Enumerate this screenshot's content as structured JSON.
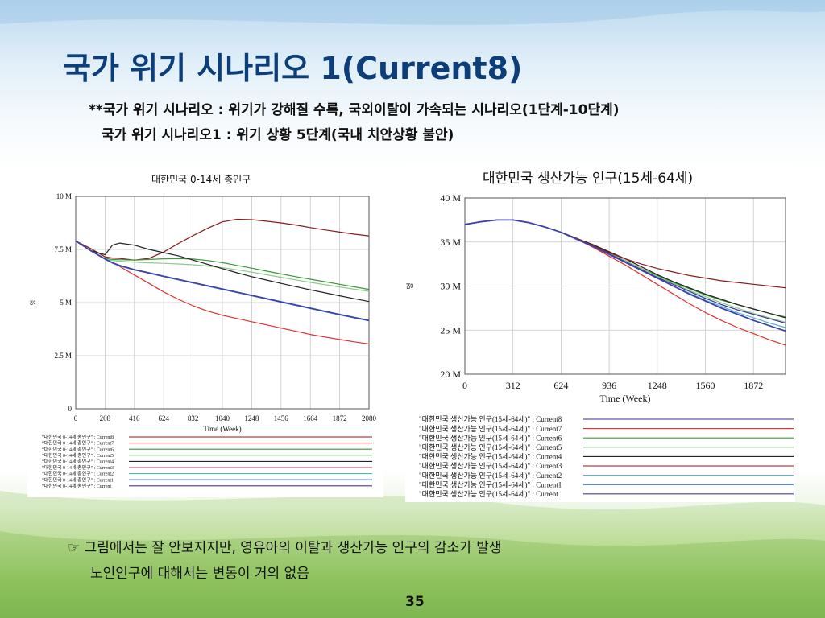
{
  "slide": {
    "title": "국가 위기 시나리오 1(Current8)",
    "subtitle_line1": "**국가 위기 시나리오  : 위기가 강해질 수록, 국외이탈이 가속되는 시나리오(1단계-10단계)",
    "subtitle_line2": "국가 위기 시나리오1 : 위기 상황 5단계(국내 치안상황 불안)",
    "note_line1": "☞ 그림에서는 잘 안보지지만, 영유아의 이탈과 생산가능 인구의 감소가 발생",
    "note_line2": "노인인구에 대해서는 변동이 거의 없음",
    "page_number": "35"
  },
  "chart_data": [
    {
      "type": "line",
      "title": "대한민국 0-14세 총인구",
      "xlabel": "Time (Week)",
      "ylabel": "명",
      "xlim": [
        0,
        2080
      ],
      "ylim": [
        0,
        10000000
      ],
      "x_ticks": [
        "0",
        "208",
        "416",
        "624",
        "832",
        "1040",
        "1248",
        "1456",
        "1664",
        "1872",
        "2080"
      ],
      "y_ticks": [
        {
          "value": 0,
          "label": "0"
        },
        {
          "value": 2500000,
          "label": "2.5 M"
        },
        {
          "value": 5000000,
          "label": "5 M"
        },
        {
          "value": 7500000,
          "label": "7.5 M"
        },
        {
          "value": 10000000,
          "label": "10 M"
        }
      ],
      "x": [
        0,
        104,
        208,
        260,
        312,
        416,
        520,
        624,
        728,
        832,
        936,
        1040,
        1144,
        1248,
        1352,
        1456,
        1560,
        1664,
        1768,
        1872,
        1976,
        2080
      ],
      "series": [
        {
          "name": "\"대한민국 0-14세 총인구\" : Current8",
          "color": "#8b1a1a",
          "width": 1.2,
          "values": [
            7900000,
            7550000,
            7150000,
            7100000,
            7080000,
            7000000,
            7080000,
            7380000,
            7780000,
            8150000,
            8500000,
            8800000,
            8920000,
            8900000,
            8830000,
            8750000,
            8650000,
            8530000,
            8420000,
            8320000,
            8220000,
            8140000
          ]
        },
        {
          "name": "\"대한민국 0-14세 총인구\" : Current7",
          "color": "#e03030",
          "width": 1.2,
          "values": [
            7900000,
            7450000,
            7050000,
            6900000,
            6700000,
            6300000,
            5900000,
            5500000,
            5150000,
            4850000,
            4600000,
            4400000,
            4250000,
            4100000,
            3950000,
            3800000,
            3650000,
            3500000,
            3380000,
            3260000,
            3150000,
            3050000
          ]
        },
        {
          "name": "\"대한민국 0-14세 총인구\" : Current6",
          "color": "#3a9a3a",
          "width": 1.2,
          "values": [
            7900000,
            7450000,
            7080000,
            7030000,
            7020000,
            7000000,
            7030000,
            7060000,
            7070000,
            7050000,
            6980000,
            6880000,
            6750000,
            6620000,
            6480000,
            6350000,
            6220000,
            6100000,
            5980000,
            5860000,
            5740000,
            5620000
          ]
        },
        {
          "name": "\"대한민국 0-14세 총인구\" : Current5",
          "color": "#8cc88c",
          "width": 1.2,
          "values": [
            7900000,
            7450000,
            7050000,
            6980000,
            6950000,
            6900000,
            6870000,
            6850000,
            6820000,
            6780000,
            6720000,
            6640000,
            6540000,
            6430000,
            6310000,
            6190000,
            6070000,
            5950000,
            5840000,
            5730000,
            5630000,
            5530000
          ]
        },
        {
          "name": "\"대한민국 0-14세 총인구\" : Current4",
          "color": "#222222",
          "width": 1.2,
          "values": [
            7900000,
            7450000,
            7250000,
            7700000,
            7800000,
            7700000,
            7500000,
            7350000,
            7200000,
            7000000,
            6800000,
            6600000,
            6400000,
            6220000,
            6060000,
            5900000,
            5750000,
            5600000,
            5460000,
            5320000,
            5180000,
            5050000
          ]
        },
        {
          "name": "\"대한민국 0-14세 총인구\" : Current3",
          "color": "#b03a5a",
          "width": 1.2,
          "values": [
            7900000,
            7450000,
            7050000,
            6880000,
            6750000,
            6550000,
            6400000,
            6240000,
            6090000,
            5940000,
            5790000,
            5640000,
            5490000,
            5340000,
            5190000,
            5040000,
            4890000,
            4740000,
            4590000,
            4440000,
            4300000,
            4160000
          ]
        },
        {
          "name": "\"대한민국 0-14세 총인구\" : Current2",
          "color": "#5ab4c8",
          "width": 1.2,
          "values": [
            7900000,
            7450000,
            7050000,
            6890000,
            6760000,
            6560000,
            6410000,
            6250000,
            6100000,
            5950000,
            5800000,
            5650000,
            5500000,
            5350000,
            5200000,
            5050000,
            4900000,
            4750000,
            4600000,
            4450000,
            4310000,
            4170000
          ]
        },
        {
          "name": "\"대한민국 0-14세 총인구\" : Current1",
          "color": "#2a5cd8",
          "width": 1.8,
          "values": [
            7900000,
            7450000,
            7050000,
            6870000,
            6740000,
            6540000,
            6390000,
            6230000,
            6080000,
            5930000,
            5780000,
            5630000,
            5480000,
            5330000,
            5180000,
            5030000,
            4880000,
            4730000,
            4580000,
            4430000,
            4290000,
            4150000
          ]
        },
        {
          "name": "\"대한민국 0-14세 총인구\" : Current",
          "color": "#4a3a9a",
          "width": 1.2,
          "values": [
            7900000,
            7450000,
            7050000,
            6880000,
            6750000,
            6550000,
            6400000,
            6240000,
            6090000,
            5940000,
            5790000,
            5640000,
            5490000,
            5340000,
            5190000,
            5040000,
            4890000,
            4740000,
            4590000,
            4440000,
            4300000,
            4160000
          ]
        }
      ]
    },
    {
      "type": "line",
      "title": "대한민국 생산가능 인구(15세-64세)",
      "xlabel": "Time (Week)",
      "ylabel": "명",
      "xlim": [
        0,
        2080
      ],
      "ylim": [
        20000000,
        40000000
      ],
      "x_ticks": [
        "0",
        "312",
        "624",
        "936",
        "1248",
        "1560",
        "1872"
      ],
      "y_ticks": [
        {
          "value": 20000000,
          "label": "20 M"
        },
        {
          "value": 25000000,
          "label": "25 M"
        },
        {
          "value": 30000000,
          "label": "30 M"
        },
        {
          "value": 35000000,
          "label": "35 M"
        },
        {
          "value": 40000000,
          "label": "40 M"
        }
      ],
      "x": [
        0,
        104,
        208,
        312,
        416,
        520,
        624,
        728,
        832,
        936,
        1040,
        1144,
        1248,
        1352,
        1456,
        1560,
        1664,
        1768,
        1872,
        1976,
        2080
      ],
      "series": [
        {
          "name": "\"대한민국 생산가능 인구(15세-64세)\" : Current8",
          "color": "#3a2a9a",
          "width": 1.2,
          "values": [
            37000000,
            37300000,
            37500000,
            37500000,
            37200000,
            36700000,
            36100000,
            35400000,
            34600000,
            33700000,
            32800000,
            31900000,
            31000000,
            30200000,
            29400000,
            28600000,
            27900000,
            27300000,
            26800000,
            26300000,
            25800000
          ]
        },
        {
          "name": "\"대한민국 생산가능 인구(15세-64세)\" : Current7",
          "color": "#e03030",
          "width": 1.2,
          "values": [
            37000000,
            37300000,
            37500000,
            37500000,
            37200000,
            36700000,
            36100000,
            35300000,
            34400000,
            33400000,
            32400000,
            31300000,
            30200000,
            29100000,
            28000000,
            27000000,
            26100000,
            25300000,
            24600000,
            23900000,
            23300000
          ]
        },
        {
          "name": "\"대한민국 생산가능 인구(15세-64세)\" : Current6",
          "color": "#3a9a3a",
          "width": 1.2,
          "values": [
            37000000,
            37300000,
            37500000,
            37500000,
            37200000,
            36700000,
            36100000,
            35400000,
            34600000,
            33800000,
            32900000,
            32000000,
            31200000,
            30400000,
            29700000,
            29000000,
            28400000,
            27900000,
            27400000,
            26900000,
            26500000
          ]
        },
        {
          "name": "\"대한민국 생산가능 인구(15세-64세)\" : Current5",
          "color": "#8cc88c",
          "width": 1.2,
          "values": [
            37000000,
            37300000,
            37500000,
            37500000,
            37200000,
            36700000,
            36100000,
            35400000,
            34600000,
            33800000,
            32900000,
            32000000,
            31100000,
            30300000,
            29500000,
            28800000,
            28100000,
            27500000,
            26900000,
            26400000,
            25900000
          ]
        },
        {
          "name": "\"대한민국 생산가능 인구(15세-64세)\" : Current4",
          "color": "#222222",
          "width": 1.2,
          "values": [
            37000000,
            37300000,
            37500000,
            37500000,
            37200000,
            36700000,
            36100000,
            35400000,
            34700000,
            33900000,
            33100000,
            32200000,
            31300000,
            30500000,
            29800000,
            29100000,
            28500000,
            27900000,
            27400000,
            26900000,
            26400000
          ]
        },
        {
          "name": "\"대한민국 생산가능 인구(15세-64세)\" : Current3",
          "color": "#8b1a1a",
          "width": 1.2,
          "values": [
            37000000,
            37300000,
            37500000,
            37500000,
            37200000,
            36700000,
            36100000,
            35400000,
            34600000,
            33800000,
            33100000,
            32500000,
            32000000,
            31600000,
            31200000,
            30900000,
            30600000,
            30400000,
            30200000,
            30000000,
            29800000
          ]
        },
        {
          "name": "\"대한민국 생산가능 인구(15세-64세)\" : Current2",
          "color": "#5ab4c8",
          "width": 1.2,
          "values": [
            37000000,
            37300000,
            37500000,
            37500000,
            37200000,
            36700000,
            36100000,
            35300000,
            34500000,
            33600000,
            32700000,
            31800000,
            30900000,
            30000000,
            29200000,
            28400000,
            27700000,
            27000000,
            26400000,
            25800000,
            25300000
          ]
        },
        {
          "name": "\"대한민국 생산가능 인구(15세-64세)\" : Current1",
          "color": "#2a5cd8",
          "width": 1.8,
          "values": [
            37000000,
            37300000,
            37500000,
            37500000,
            37200000,
            36700000,
            36100000,
            35300000,
            34500000,
            33600000,
            32700000,
            31800000,
            30900000,
            30000000,
            29100000,
            28300000,
            27500000,
            26800000,
            26100000,
            25500000,
            24900000
          ]
        },
        {
          "name": "\"대한민국 생산가능 인구(15세-64세)\" : Current",
          "color": "#4a3a9a",
          "width": 1.2,
          "values": [
            37000000,
            37300000,
            37500000,
            37500000,
            37200000,
            36700000,
            36100000,
            35300000,
            34500000,
            33600000,
            32700000,
            31800000,
            30900000,
            30000000,
            29100000,
            28300000,
            27500000,
            26800000,
            26100000,
            25500000,
            24900000
          ]
        }
      ]
    }
  ]
}
